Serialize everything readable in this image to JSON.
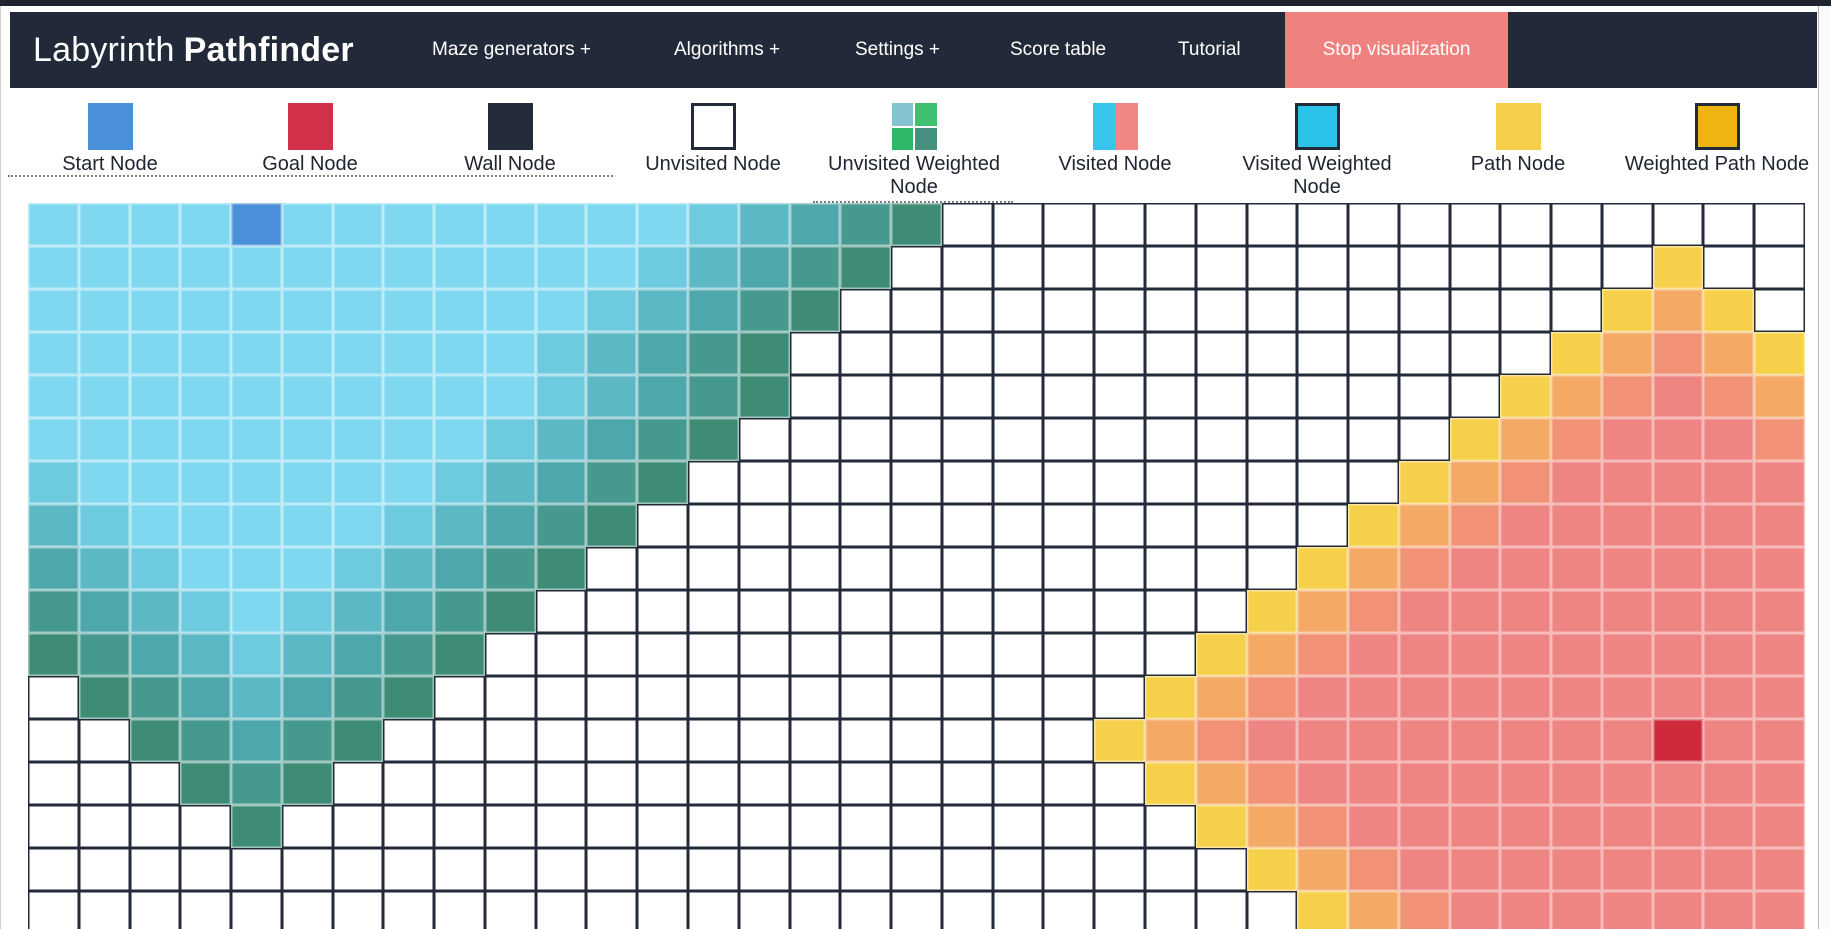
{
  "navbar": {
    "bg": "#222938",
    "brand": {
      "light": "Labyrinth",
      "bold": "Pathfinder"
    },
    "items": [
      {
        "label": "Maze generators +"
      },
      {
        "label": "Algorithms +"
      },
      {
        "label": "Settings +"
      },
      {
        "label": "Score table"
      },
      {
        "label": "Tutorial"
      }
    ],
    "stop_button": {
      "label": "Stop visualization",
      "bg": "#ef827f",
      "text_color": "#ffffff"
    }
  },
  "legend": {
    "items": [
      {
        "label": "Start Node",
        "swatch": {
          "type": "solid",
          "color": "#4a90d9"
        }
      },
      {
        "label": "Goal Node",
        "swatch": {
          "type": "solid",
          "color": "#d3304a"
        }
      },
      {
        "label": "Wall Node",
        "swatch": {
          "type": "solid",
          "color": "#232a39"
        }
      },
      {
        "label": "Unvisited Node",
        "swatch": {
          "type": "bordered",
          "color": "#ffffff",
          "border": "#232a39"
        }
      },
      {
        "label": "Unvisited Weighted Node",
        "swatch": {
          "type": "quad",
          "colors": [
            "#85c3d2",
            "#3fbf70",
            "#2db766",
            "#46907f"
          ]
        }
      },
      {
        "label": "Visited Node",
        "swatch": {
          "type": "split",
          "colors": [
            "#38c5ec",
            "#f28683"
          ]
        }
      },
      {
        "label": "Visited Weighted Node",
        "swatch": {
          "type": "bordered",
          "color": "#2ac2e8",
          "border": "#232a39"
        }
      },
      {
        "label": "Path Node",
        "swatch": {
          "type": "solid",
          "color": "#f6d04b"
        }
      },
      {
        "label": "Weighted Path Node",
        "swatch": {
          "type": "bordered",
          "color": "#f0b411",
          "border": "#232a39"
        }
      }
    ]
  },
  "grid": {
    "cols": 35,
    "rows": 17,
    "start_cell": {
      "row": 0,
      "col": 4
    },
    "goal_cell": {
      "row": 12,
      "col": 32
    },
    "palette": {
      ".": {
        "name": "unvisited-white",
        "fill": "#ffffff",
        "border": "#232a39"
      },
      "S": {
        "name": "start-node-blue",
        "fill": "#4a90d9",
        "border": "rgba(255,255,255,0.5)"
      },
      "G": {
        "name": "goal-node-red",
        "fill": "#ce2a3c",
        "border": "rgba(255,255,255,0.45)"
      },
      "1": {
        "name": "visited-cool-light",
        "fill": "#7fd8f0",
        "border": "rgba(255,255,255,0.5)"
      },
      "2": {
        "name": "visited-cool-2",
        "fill": "#6ecadf",
        "border": "rgba(255,255,255,0.5)"
      },
      "3": {
        "name": "visited-cool-3",
        "fill": "#5cb8c5",
        "border": "rgba(255,255,255,0.5)"
      },
      "4": {
        "name": "visited-cool-4",
        "fill": "#4ea7ab",
        "border": "rgba(255,255,255,0.5)"
      },
      "5": {
        "name": "visited-cool-5",
        "fill": "#45998e",
        "border": "rgba(255,255,255,0.5)"
      },
      "6": {
        "name": "visited-cool-frontier",
        "fill": "#3e8b76",
        "border": "rgba(255,255,255,0.5)"
      },
      "a": {
        "name": "visited-warm-frontier-yellow",
        "fill": "#f6d04b",
        "border": "rgba(255,255,255,0.45)"
      },
      "b": {
        "name": "visited-warm-orange",
        "fill": "#f4a964",
        "border": "rgba(255,255,255,0.45)"
      },
      "c": {
        "name": "visited-warm-salmon-orange",
        "fill": "#f19276",
        "border": "rgba(255,255,255,0.45)"
      },
      "d": {
        "name": "visited-warm-salmon",
        "fill": "#ef8583",
        "border": "rgba(255,255,255,0.45)"
      }
    },
    "cells": [
      "1111S1111111123456.................",
      "11111111111123456...............a..",
      "1111111111123456...............aba.",
      "111111111123456...............abcba",
      "111111111123456..............abcdcb",
      "11111111123456..............abcdddc",
      "2111111123456..............abcddddd",
      "321111123456..............abcdddddd",
      "43211123456..............abcddddddd",
      "5432123456..............abcdddddddd",
      "654323456..............abcddddddddd",
      ".6543456..............abcdddddddddd",
      "..65456..............abcddddddddGdd",
      "...656................abcdddddddddd",
      "....6..................abcddddddddd",
      "........................abcdddddddd",
      ".........................abcddddddd"
    ]
  }
}
